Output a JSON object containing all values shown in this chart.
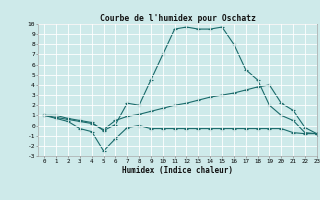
{
  "title": "Courbe de l'humidex pour Oschatz",
  "xlabel": "Humidex (Indice chaleur)",
  "bg_color": "#ceeaea",
  "grid_color": "#ffffff",
  "line_color": "#1a6b6b",
  "xlim": [
    -0.5,
    23
  ],
  "ylim": [
    -3,
    10
  ],
  "lines": [
    {
      "x": [
        0,
        1,
        2,
        3,
        4,
        5,
        6,
        7,
        8,
        9,
        10,
        11,
        12,
        13,
        14,
        15,
        16,
        17,
        18,
        19,
        20,
        21,
        22,
        23
      ],
      "y": [
        1,
        1,
        0.7,
        0.5,
        0.3,
        -0.5,
        0.1,
        2.2,
        2.0,
        4.5,
        7.0,
        9.5,
        9.7,
        9.5,
        9.5,
        9.7,
        8.0,
        5.5,
        4.5,
        2.0,
        1.0,
        0.5,
        -0.7,
        -0.8
      ]
    },
    {
      "x": [
        0,
        1,
        2,
        3,
        4,
        5,
        6,
        7,
        8,
        9,
        10,
        11,
        12,
        13,
        14,
        15,
        16,
        17,
        18,
        19,
        20,
        21,
        22,
        23
      ],
      "y": [
        1,
        0.8,
        0.6,
        0.4,
        0.2,
        -0.4,
        0.5,
        0.9,
        1.1,
        1.4,
        1.7,
        2.0,
        2.2,
        2.5,
        2.8,
        3.0,
        3.2,
        3.5,
        3.8,
        4.0,
        2.2,
        1.5,
        -0.2,
        -0.8
      ]
    },
    {
      "x": [
        0,
        1,
        2,
        3,
        4,
        5,
        6,
        7,
        8,
        9,
        10,
        11,
        12,
        13,
        14,
        15,
        16,
        17,
        18,
        19,
        20,
        21,
        22,
        23
      ],
      "y": [
        1,
        0.7,
        0.4,
        -0.3,
        -0.6,
        -2.5,
        -1.3,
        -0.2,
        0.0,
        -0.3,
        -0.3,
        -0.3,
        -0.3,
        -0.3,
        -0.3,
        -0.3,
        -0.3,
        -0.3,
        -0.3,
        -0.3,
        -0.3,
        -0.7,
        -0.8,
        -0.8
      ]
    }
  ]
}
